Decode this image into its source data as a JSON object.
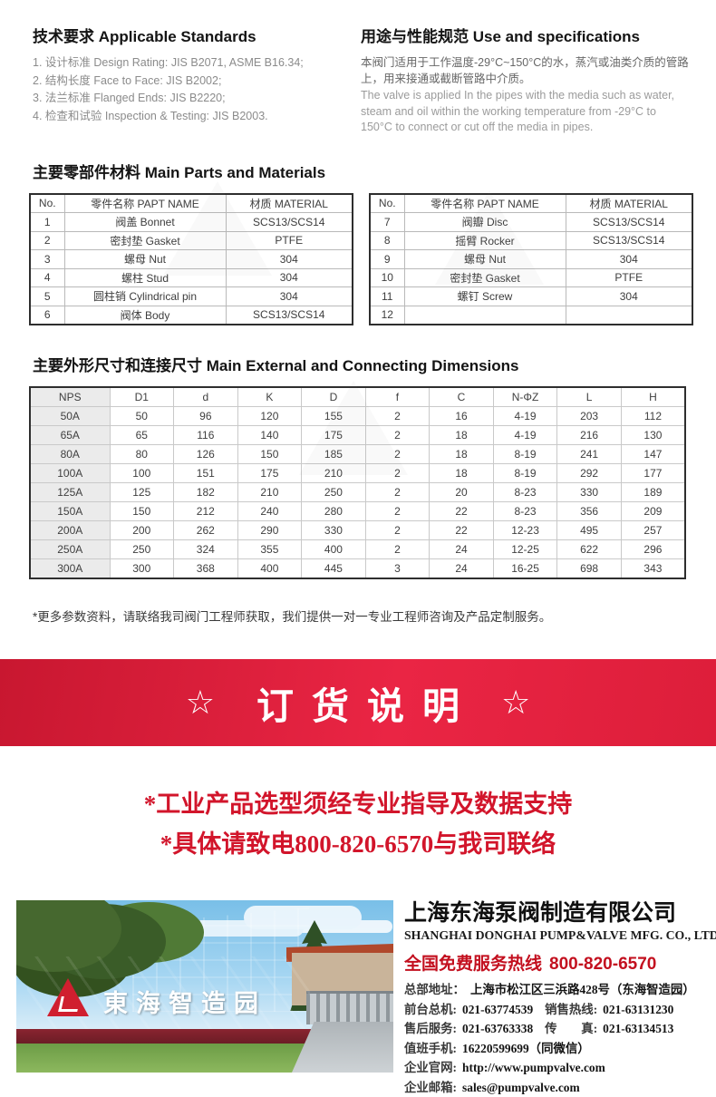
{
  "standards": {
    "title": "技术要求 Applicable Standards",
    "items": [
      "1. 设计标准 Design Rating: JIS B2071, ASME B16.34;",
      "2. 结构长度 Face to Face: JIS B2002;",
      "3. 法兰标准 Flanged Ends: JIS B2220;",
      "4. 检查和试验 Inspection & Testing: JIS B2003."
    ]
  },
  "usage": {
    "title": "用途与性能规范 Use and specifications",
    "cn": "本阀门适用于工作温度-29°C~150°C的水，蒸汽或油类介质的管路上，用来接通或截断管路中介质。",
    "en": "The valve is applied In the pipes with the media such as water, steam and oil within the working temperature from -29°C to 150°C to connect or cut off the media in pipes."
  },
  "parts": {
    "title": "主要零部件材料 Main Parts and Materials",
    "headers": [
      "No.",
      "零件名称 PAPT NAME",
      "材质 MATERIAL"
    ],
    "left_rows": [
      [
        "1",
        "阀盖 Bonnet",
        "SCS13/SCS14"
      ],
      [
        "2",
        "密封垫 Gasket",
        "PTFE"
      ],
      [
        "3",
        "螺母 Nut",
        "304"
      ],
      [
        "4",
        "螺柱 Stud",
        "304"
      ],
      [
        "5",
        "圆柱销 Cylindrical pin",
        "304"
      ],
      [
        "6",
        "阀体 Body",
        "SCS13/SCS14"
      ]
    ],
    "right_rows": [
      [
        "7",
        "阀瓣 Disc",
        "SCS13/SCS14"
      ],
      [
        "8",
        "摇臂 Rocker",
        "SCS13/SCS14"
      ],
      [
        "9",
        "螺母 Nut",
        "304"
      ],
      [
        "10",
        "密封垫 Gasket",
        "PTFE"
      ],
      [
        "11",
        "螺钉 Screw",
        "304"
      ],
      [
        "12",
        "",
        ""
      ]
    ]
  },
  "dimensions": {
    "title": "主要外形尺寸和连接尺寸 Main External and Connecting Dimensions",
    "headers": [
      "NPS",
      "D1",
      "d",
      "K",
      "D",
      "f",
      "C",
      "N-ΦZ",
      "L",
      "H"
    ],
    "rows": [
      [
        "50A",
        "50",
        "96",
        "120",
        "155",
        "2",
        "16",
        "4-19",
        "203",
        "112"
      ],
      [
        "65A",
        "65",
        "116",
        "140",
        "175",
        "2",
        "18",
        "4-19",
        "216",
        "130"
      ],
      [
        "80A",
        "80",
        "126",
        "150",
        "185",
        "2",
        "18",
        "8-19",
        "241",
        "147"
      ],
      [
        "100A",
        "100",
        "151",
        "175",
        "210",
        "2",
        "18",
        "8-19",
        "292",
        "177"
      ],
      [
        "125A",
        "125",
        "182",
        "210",
        "250",
        "2",
        "20",
        "8-23",
        "330",
        "189"
      ],
      [
        "150A",
        "150",
        "212",
        "240",
        "280",
        "2",
        "22",
        "8-23",
        "356",
        "209"
      ],
      [
        "200A",
        "200",
        "262",
        "290",
        "330",
        "2",
        "22",
        "12-23",
        "495",
        "257"
      ],
      [
        "250A",
        "250",
        "324",
        "355",
        "400",
        "2",
        "24",
        "12-25",
        "622",
        "296"
      ],
      [
        "300A",
        "300",
        "368",
        "400",
        "445",
        "3",
        "24",
        "16-25",
        "698",
        "343"
      ]
    ]
  },
  "note": "*更多参数资料，请联络我司阀门工程师获取，我们提供一对一专业工程师咨询及产品定制服务。",
  "banner": {
    "left_star": "☆",
    "title": "订货说明",
    "right_star": "☆"
  },
  "slogans": [
    "*工业产品选型须经专业指导及数据支持",
    "*具体请致电800-820-6570与我司联络"
  ],
  "footer": {
    "photo_sign": "東海智造园",
    "company_cn": "上海东海泵阀制造有限公司",
    "company_en": "SHANGHAI DONGHAI PUMP&VALVE MFG. CO., LTD.",
    "hotline_label": "全国免费服务热线",
    "hotline_number": "800-820-6570",
    "contact_lines": [
      {
        "label": "总部地址：",
        "value": "上海市松江区三浜路428号（东海智造园）"
      },
      {
        "label": "前台总机:",
        "value": "021-63774539",
        "label2": "销售热线:",
        "value2": "021-63131230"
      },
      {
        "label": "售后服务:",
        "value": "021-63763338",
        "label2": "传　　真:",
        "value2": "021-63134513"
      },
      {
        "label": "值班手机:",
        "value": "16220599699（同微信）"
      },
      {
        "label": "企业官网:",
        "value": "http://www.pumpvalve.com"
      },
      {
        "label": "企业邮箱:",
        "value": "sales@pumpvalve.com"
      }
    ]
  },
  "colors": {
    "banner_red": "#e02039",
    "slogan_red": "#d2152b",
    "hotline_red": "#c3101f"
  }
}
